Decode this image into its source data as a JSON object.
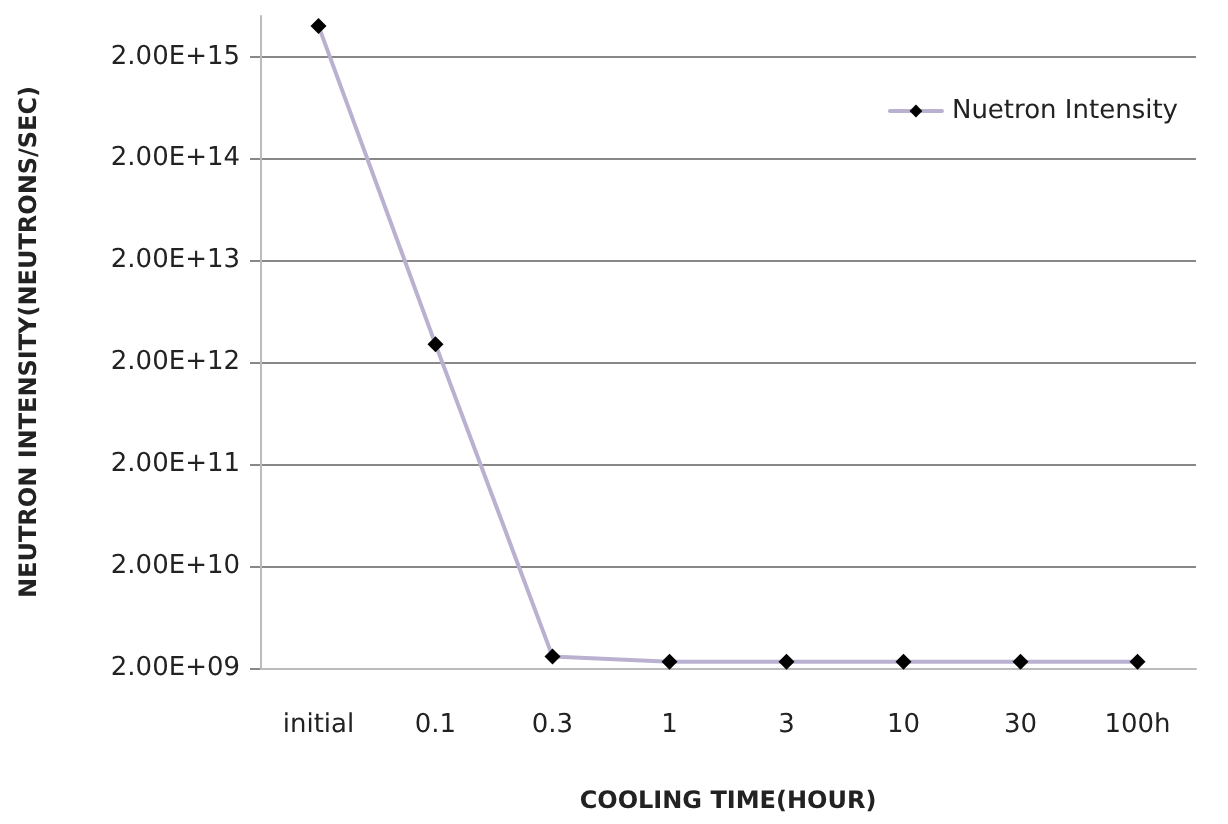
{
  "chart_data": {
    "type": "line",
    "xlabel": "COOLING TIME(HOUR)",
    "ylabel": "NEUTRON INTENSITY(NEUTRONS/SEC)",
    "categories": [
      "initial",
      "0.1",
      "0.3",
      "1",
      "3",
      "10",
      "30",
      "100h"
    ],
    "series": [
      {
        "name": "Nuetron Intensity",
        "color": "#b9b1cf",
        "values": [
          4000000000000000.0,
          3000000000000.0,
          2600000000.0,
          2300000000.0,
          2300000000.0,
          2300000000.0,
          2300000000.0,
          2300000000.0
        ]
      }
    ],
    "log": "y",
    "ylim": [
      2000000000.0,
      5000000000000000.0
    ],
    "yticks": [
      {
        "value": 2000000000.0,
        "label": "2.00E+09"
      },
      {
        "value": 20000000000.0,
        "label": "2.00E+10"
      },
      {
        "value": 200000000000.0,
        "label": "2.00E+11"
      },
      {
        "value": 2000000000000.0,
        "label": "2.00E+12"
      },
      {
        "value": 20000000000000.0,
        "label": "2.00E+13"
      },
      {
        "value": 200000000000000.0,
        "label": "2.00E+14"
      },
      {
        "value": 2000000000000000.0,
        "label": "2.00E+15"
      }
    ],
    "grid": "y",
    "legend": "top right",
    "marker": "diamond",
    "line_style": "solid"
  }
}
